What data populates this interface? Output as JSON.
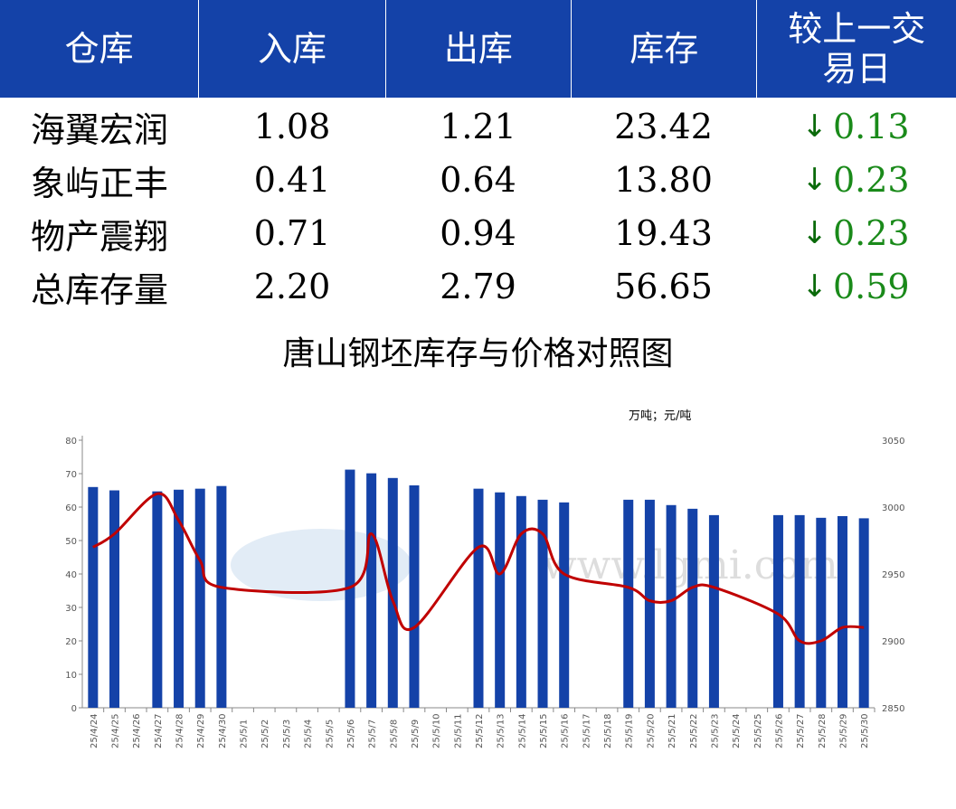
{
  "table": {
    "headers": [
      "仓库",
      "入库",
      "出库",
      "库存",
      "较上一交易日"
    ],
    "rows": [
      {
        "name": "海翼宏润",
        "in": "1.08",
        "out": "1.21",
        "stock": "23.42",
        "change": "0.13",
        "direction": "down"
      },
      {
        "name": "象屿正丰",
        "in": "0.41",
        "out": "0.64",
        "stock": "13.80",
        "change": "0.23",
        "direction": "down"
      },
      {
        "name": "物产震翔",
        "in": "0.71",
        "out": "0.94",
        "stock": "19.43",
        "change": "0.23",
        "direction": "down"
      },
      {
        "name": "总库存量",
        "in": "2.20",
        "out": "2.79",
        "stock": "56.65",
        "change": "0.59",
        "direction": "down"
      }
    ],
    "header_color": "#1442a8",
    "change_color": "#1a8a1a"
  },
  "chart_data": {
    "type": "bar+line",
    "title": "唐山钢坯库存与价格对照图",
    "unit_label": "万吨；元/吨",
    "watermark": "LGMi www.lgmi.com",
    "categories": [
      "25/4/24",
      "25/4/25",
      "25/4/26",
      "25/4/27",
      "25/4/28",
      "25/4/29",
      "25/4/30",
      "25/5/1",
      "25/5/2",
      "25/5/3",
      "25/5/4",
      "25/5/5",
      "25/5/6",
      "25/5/7",
      "25/5/8",
      "25/5/9",
      "25/5/10",
      "25/5/11",
      "25/5/12",
      "25/5/13",
      "25/5/14",
      "25/5/15",
      "25/5/16",
      "25/5/17",
      "25/5/18",
      "25/5/19",
      "25/5/20",
      "25/5/21",
      "25/5/22",
      "25/5/23",
      "25/5/24",
      "25/5/25",
      "25/5/26",
      "25/5/27",
      "25/5/28",
      "25/5/29",
      "25/5/30"
    ],
    "series": [
      {
        "type": "bar",
        "axis": "left",
        "color": "#1442a8",
        "values": [
          66.0,
          65.0,
          null,
          64.7,
          65.2,
          65.5,
          66.3,
          null,
          null,
          null,
          null,
          null,
          71.2,
          70.1,
          68.7,
          66.5,
          null,
          null,
          65.5,
          64.4,
          63.3,
          62.2,
          61.4,
          null,
          null,
          62.2,
          62.2,
          60.6,
          59.5,
          57.6,
          null,
          null,
          57.6,
          57.6,
          56.8,
          57.3,
          56.65
        ]
      },
      {
        "type": "line",
        "axis": "right",
        "color": "#c00000",
        "smooth": true,
        "values": [
          2970,
          2980,
          null,
          3010,
          2990,
          2960,
          2940,
          null,
          null,
          null,
          null,
          null,
          2940,
          2980,
          2930,
          2910,
          null,
          null,
          2970,
          2950,
          2980,
          2980,
          2950,
          null,
          null,
          2940,
          2930,
          2930,
          2940,
          2940,
          null,
          null,
          2920,
          2900,
          2900,
          2910,
          2910
        ]
      }
    ],
    "left_axis": {
      "min": 0,
      "max": 80,
      "ticks": [
        0,
        10,
        20,
        30,
        40,
        50,
        60,
        70,
        80
      ]
    },
    "right_axis": {
      "min": 2850,
      "max": 3050,
      "ticks": [
        2850,
        2900,
        2950,
        3000,
        3050
      ]
    },
    "grid": false,
    "legend": "none"
  }
}
